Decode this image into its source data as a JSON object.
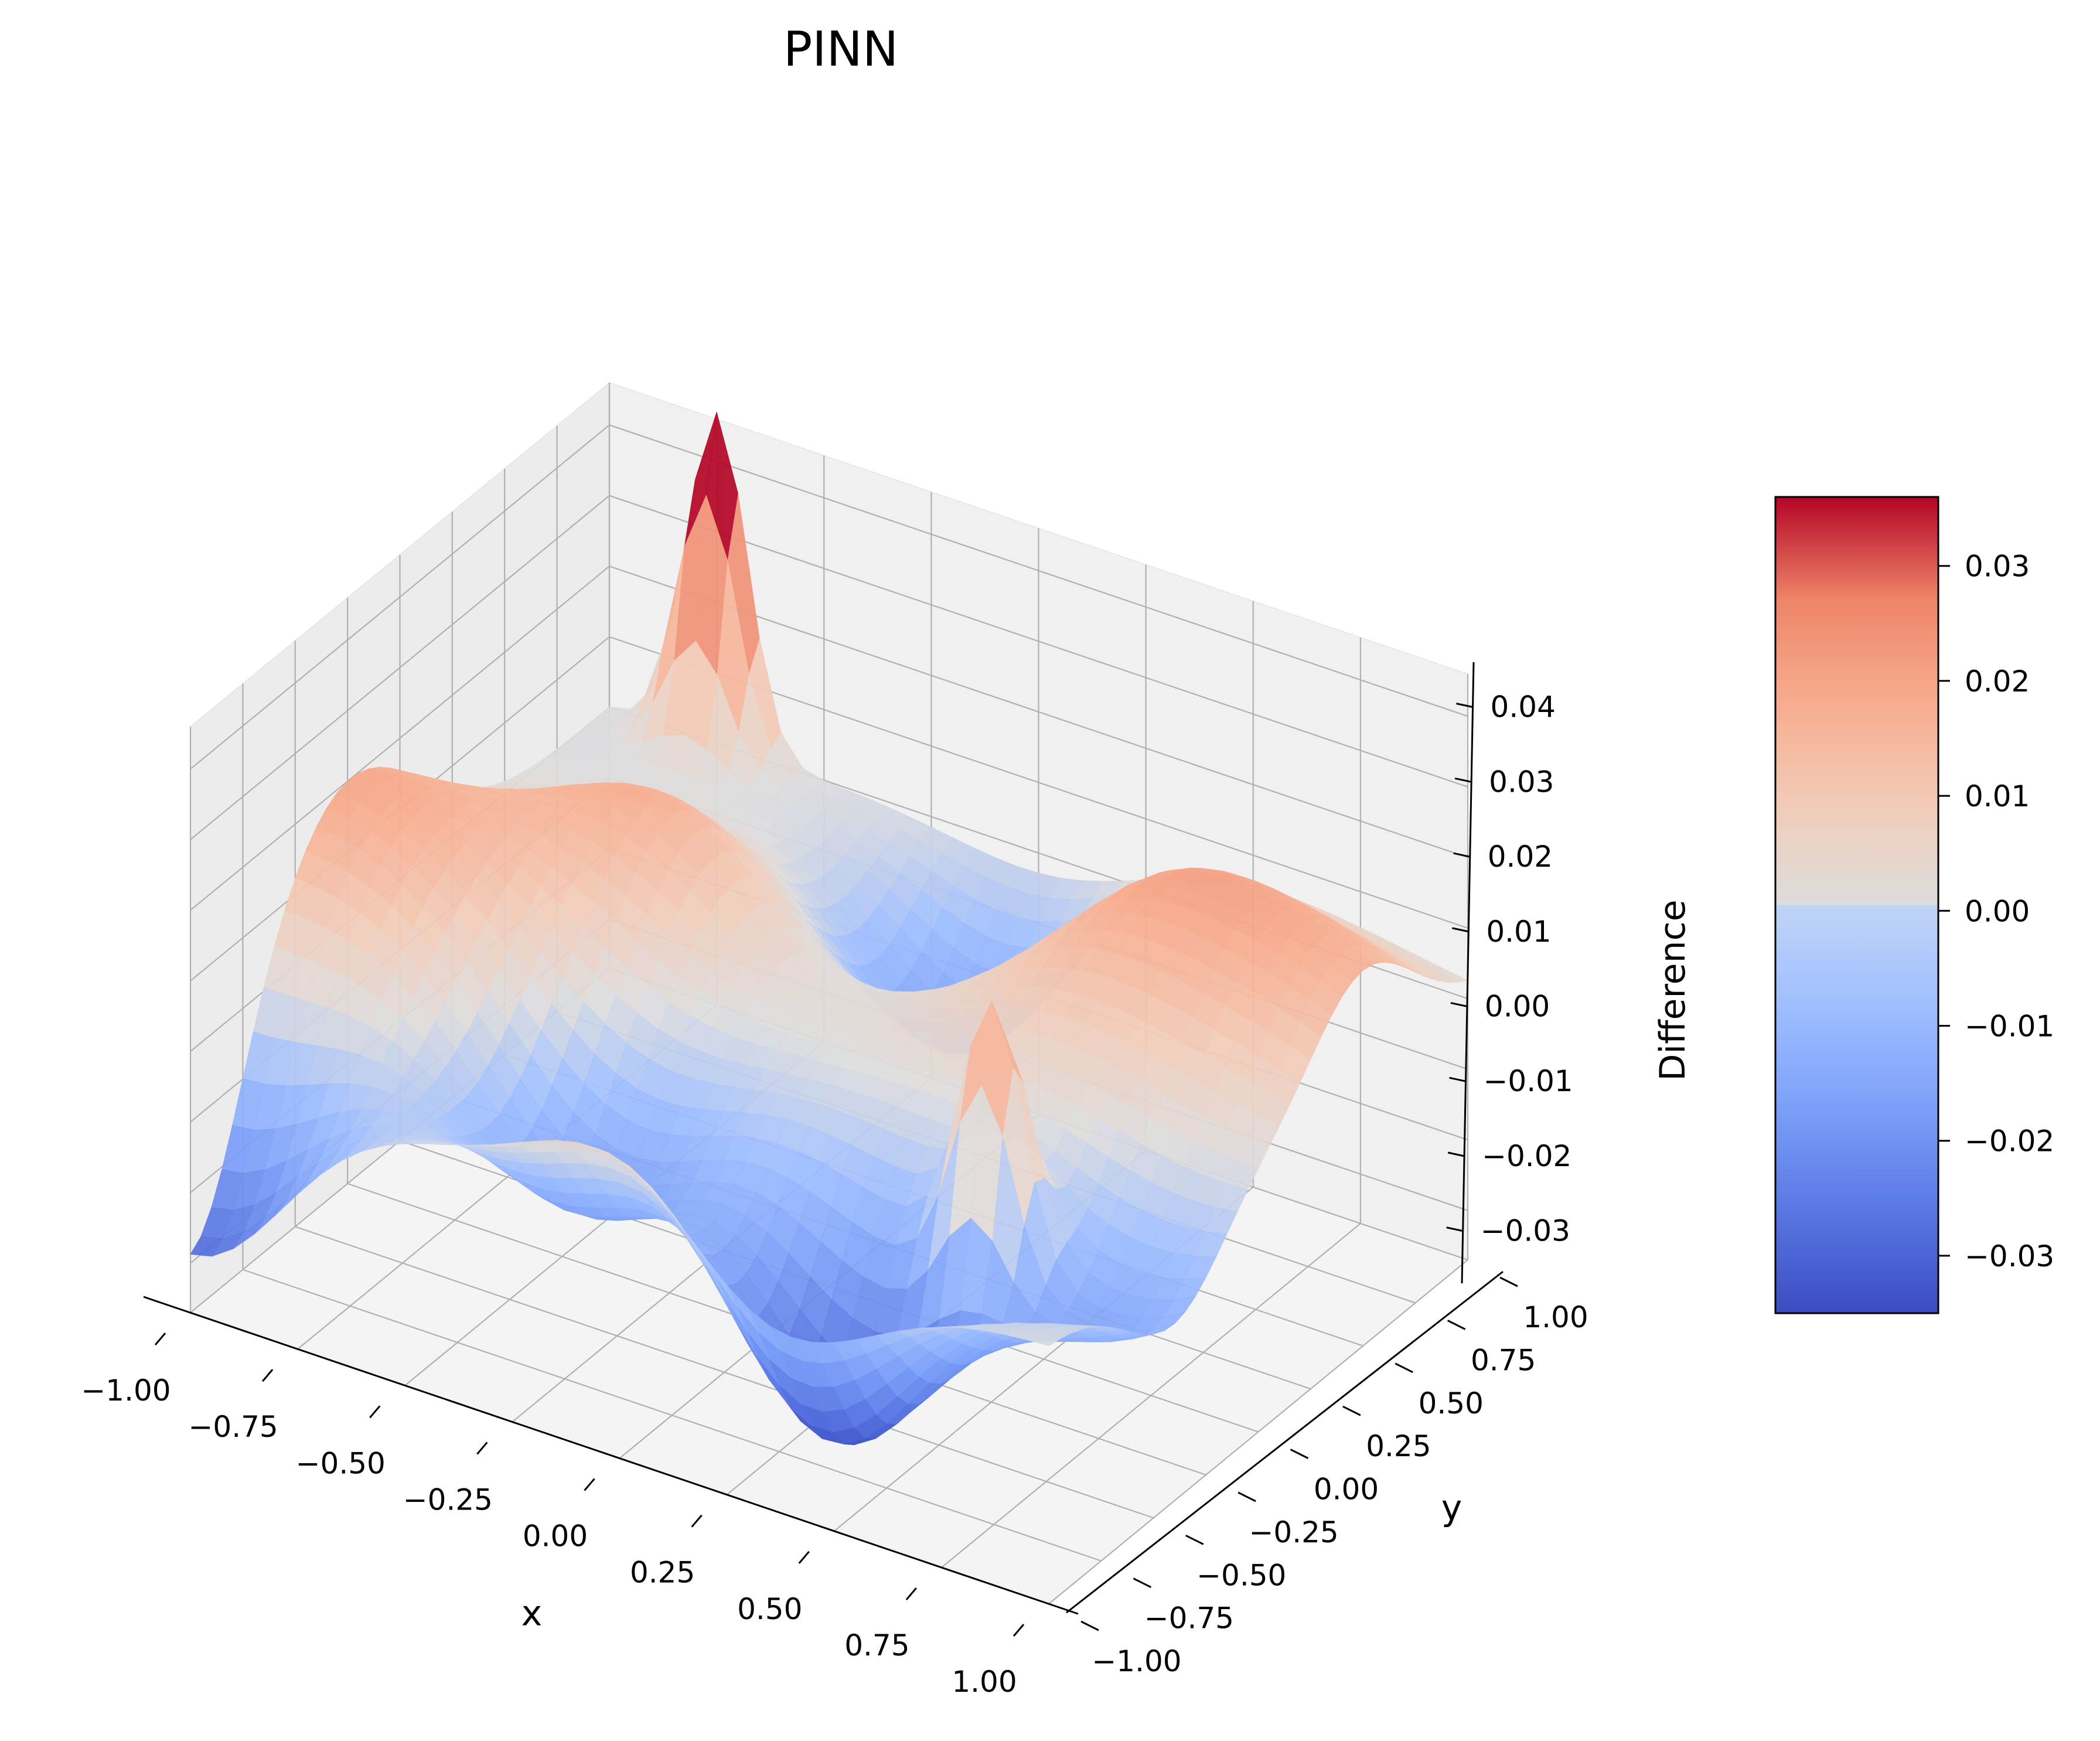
{
  "chart_data": {
    "type": "surface3d",
    "title": "PINN",
    "xlabel": "x",
    "ylabel": "y",
    "zlabel": "Difference",
    "xlim": [
      -1.0,
      1.0
    ],
    "ylim": [
      -1.0,
      1.0
    ],
    "zlim": [
      -0.037,
      0.046
    ],
    "x_ticks": [
      "−1.00",
      "−0.75",
      "−0.50",
      "−0.25",
      "0.00",
      "0.25",
      "0.50",
      "0.75",
      "1.00"
    ],
    "y_ticks": [
      "−1.00",
      "−0.75",
      "−0.50",
      "−0.25",
      "0.00",
      "0.25",
      "0.50",
      "0.75",
      "1.00"
    ],
    "z_ticks": [
      "−0.03",
      "−0.02",
      "−0.01",
      "0.00",
      "0.01",
      "0.02",
      "0.03",
      "0.04"
    ],
    "colormap": "coolwarm",
    "colorbar": {
      "range": [
        -0.035,
        0.036
      ],
      "ticks": [
        "−0.03",
        "−0.02",
        "−0.01",
        "0.00",
        "0.01",
        "0.02",
        "0.03"
      ]
    },
    "grid": true,
    "surface_features": [
      {
        "x": -0.75,
        "y": 1.0,
        "value": 0.047,
        "kind": "sharp peak"
      },
      {
        "x": 0.55,
        "y": -0.35,
        "value": 0.035,
        "kind": "sharp peak"
      },
      {
        "x": 0.5,
        "y": 0.5,
        "value": 0.021,
        "kind": "broad bump"
      },
      {
        "x": -1.0,
        "y": -0.25,
        "value": 0.02,
        "kind": "broad bump"
      },
      {
        "x": 0.0,
        "y": -1.0,
        "value": 0.01,
        "kind": "bump"
      },
      {
        "x": 1.0,
        "y": 0.5,
        "value": 0.01,
        "kind": "bump"
      },
      {
        "x": -0.5,
        "y": 0.2,
        "value": 0.015,
        "kind": "bump"
      },
      {
        "x": 0.05,
        "y": 0.6,
        "value": -0.025,
        "kind": "dip"
      },
      {
        "x": 0.35,
        "y": -0.7,
        "value": -0.035,
        "kind": "dip"
      },
      {
        "x": -0.3,
        "y": -0.55,
        "value": -0.02,
        "kind": "dip"
      },
      {
        "x": 0.85,
        "y": -0.4,
        "value": -0.015,
        "kind": "dip"
      },
      {
        "x": -1.0,
        "y": -1.0,
        "value": -0.03,
        "kind": "corner dip"
      }
    ]
  },
  "colors": {
    "cold": "#3b4cc0",
    "neutral": "#dddddd",
    "hot": "#b40426"
  }
}
